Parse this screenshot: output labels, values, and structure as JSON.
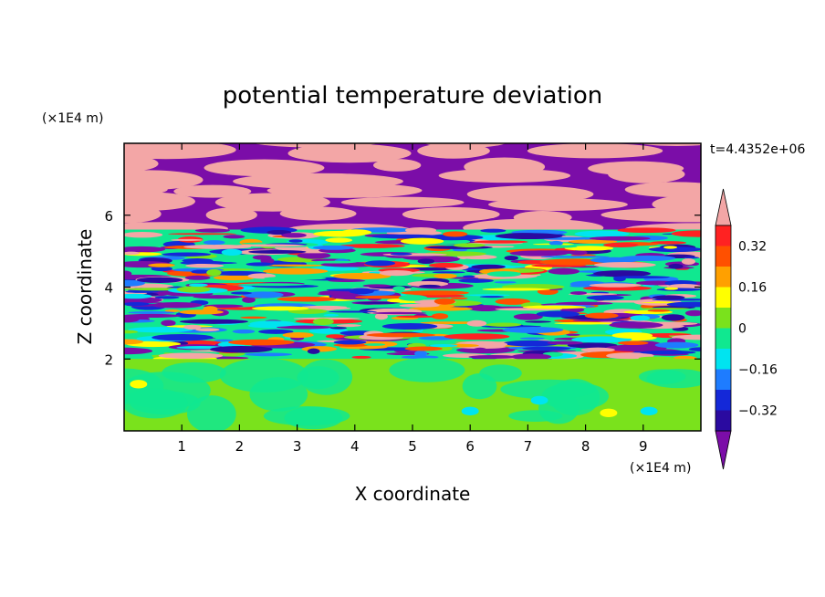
{
  "chart_data": {
    "type": "heatmap",
    "title": "potential temperature deviation",
    "xlabel": "X coordinate",
    "ylabel": "Z coordinate",
    "x_unit": "(×1E4 m)",
    "y_unit": "(×1E4 m)",
    "time_label": "t=4.4352e+06",
    "xlim": [
      0,
      10
    ],
    "ylim": [
      0,
      8
    ],
    "x_ticks": [
      "1",
      "2",
      "3",
      "4",
      "5",
      "6",
      "7",
      "8",
      "9"
    ],
    "y_ticks": [
      "2",
      "4",
      "6"
    ],
    "colorbar": {
      "levels": [
        -0.4,
        -0.32,
        -0.24,
        -0.16,
        -0.08,
        0,
        0.08,
        0.16,
        0.24,
        0.32,
        0.4
      ],
      "labels": [
        "0.32",
        "0.16",
        "0",
        "−0.16",
        "−0.32"
      ],
      "label_values": [
        0.32,
        0.16,
        0,
        -0.16,
        -0.32
      ],
      "colors": [
        "#7b0da8",
        "#2a0aa0",
        "#1428d8",
        "#1e7cff",
        "#00e4f0",
        "#10e890",
        "#7ae21c",
        "#ffff00",
        "#ffa000",
        "#ff5000",
        "#ff2222",
        "#f3a6a6"
      ],
      "extend": "both"
    },
    "layers": {
      "stable_top": {
        "z_range": [
          5.6,
          8
        ],
        "colors": [
          "#7b0da8",
          "#f3a6a6"
        ]
      },
      "turbulent": {
        "z_range": [
          2,
          5.6
        ]
      },
      "convective_bottom": {
        "z_range": [
          0,
          2
        ],
        "base_color": "#7ae21c"
      }
    }
  }
}
